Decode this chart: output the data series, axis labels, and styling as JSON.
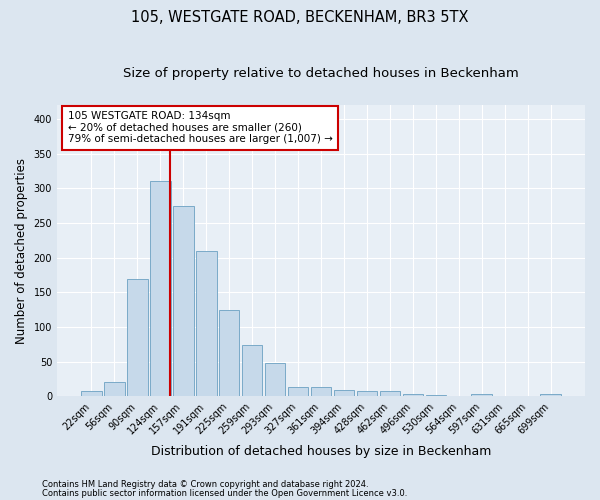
{
  "title1": "105, WESTGATE ROAD, BECKENHAM, BR3 5TX",
  "title2": "Size of property relative to detached houses in Beckenham",
  "xlabel": "Distribution of detached houses by size in Beckenham",
  "ylabel": "Number of detached properties",
  "categories": [
    "22sqm",
    "56sqm",
    "90sqm",
    "124sqm",
    "157sqm",
    "191sqm",
    "225sqm",
    "259sqm",
    "293sqm",
    "327sqm",
    "361sqm",
    "394sqm",
    "428sqm",
    "462sqm",
    "496sqm",
    "530sqm",
    "564sqm",
    "597sqm",
    "631sqm",
    "665sqm",
    "699sqm"
  ],
  "values": [
    7,
    21,
    170,
    310,
    275,
    210,
    125,
    74,
    48,
    14,
    13,
    9,
    8,
    8,
    3,
    2,
    0,
    3,
    0,
    0,
    3
  ],
  "bar_color": "#c6d9ea",
  "bar_edge_color": "#7aaac8",
  "bar_edge_width": 0.7,
  "red_line_x": 3.42,
  "annotation_line1": "105 WESTGATE ROAD: 134sqm",
  "annotation_line2": "← 20% of detached houses are smaller (260)",
  "annotation_line3": "79% of semi-detached houses are larger (1,007) →",
  "annotation_box_color": "white",
  "annotation_box_edge_color": "#cc0000",
  "red_line_color": "#cc0000",
  "ylim": [
    0,
    420
  ],
  "yticks": [
    0,
    50,
    100,
    150,
    200,
    250,
    300,
    350,
    400
  ],
  "background_color": "#dce6f0",
  "plot_bg_color": "#e8eff6",
  "grid_color": "#ffffff",
  "footer1": "Contains HM Land Registry data © Crown copyright and database right 2024.",
  "footer2": "Contains public sector information licensed under the Open Government Licence v3.0.",
  "title_fontsize": 10.5,
  "subtitle_fontsize": 9.5,
  "tick_fontsize": 7,
  "ylabel_fontsize": 8.5,
  "xlabel_fontsize": 9,
  "annotation_fontsize": 7.5,
  "footer_fontsize": 6
}
